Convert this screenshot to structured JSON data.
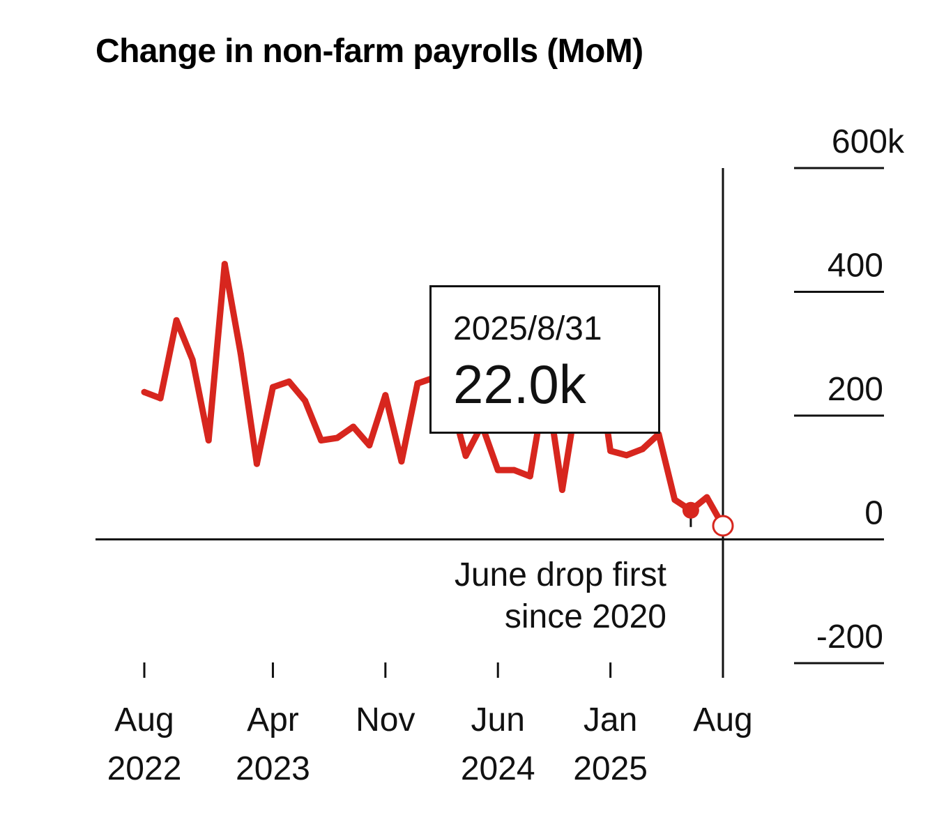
{
  "title": "Change in non-farm payrolls (MoM)",
  "colors": {
    "series": "#d7261e",
    "axis": "#111111",
    "background": "#ffffff"
  },
  "tooltip": {
    "date": "2025/8/31",
    "value": "22.0k"
  },
  "annotation": {
    "line1": "June drop first",
    "line2": "since 2020"
  },
  "chart_data": {
    "type": "line",
    "title": "Change in non-farm payrolls (MoM)",
    "y_unit_label": "600k",
    "ylim": [
      -200,
      600
    ],
    "y_ticks": [
      {
        "value": 600,
        "label": "600k"
      },
      {
        "value": 400,
        "label": "400"
      },
      {
        "value": 200,
        "label": "200"
      },
      {
        "value": 0,
        "label": "0"
      },
      {
        "value": -200,
        "label": "-200"
      }
    ],
    "x_ticks": [
      {
        "date": "2022-08",
        "month": "Aug",
        "year": "2022"
      },
      {
        "date": "2023-04",
        "month": "Apr",
        "year": "2023"
      },
      {
        "date": "2023-11",
        "month": "Nov",
        "year": ""
      },
      {
        "date": "2024-06",
        "month": "Jun",
        "year": "2024"
      },
      {
        "date": "2025-01",
        "month": "Jan",
        "year": "2025"
      },
      {
        "date": "2025-08",
        "month": "Aug",
        "year": ""
      }
    ],
    "grid": false,
    "x": [
      "2022-08",
      "2022-09",
      "2022-10",
      "2022-11",
      "2022-12",
      "2023-01",
      "2023-02",
      "2023-03",
      "2023-04",
      "2023-05",
      "2023-06",
      "2023-07",
      "2023-08",
      "2023-09",
      "2023-10",
      "2023-11",
      "2023-12",
      "2024-01",
      "2024-02",
      "2024-03",
      "2024-04",
      "2024-05",
      "2024-06",
      "2024-07",
      "2024-08",
      "2024-09",
      "2024-10",
      "2024-11",
      "2024-12",
      "2025-01",
      "2025-02",
      "2025-03",
      "2025-04",
      "2025-05",
      "2025-06",
      "2025-07",
      "2025-08"
    ],
    "series": [
      {
        "values": [
          238,
          228,
          354,
          290,
          160,
          445,
          300,
          122,
          246,
          255,
          224,
          160,
          164,
          182,
          152,
          233,
          126,
          252,
          261,
          230,
          135,
          185,
          112,
          112,
          102,
          255,
          80,
          242,
          323,
          143,
          136,
          146,
          170,
          64,
          47,
          68,
          22
        ]
      }
    ],
    "highlight": {
      "date": "2025-08",
      "value": 22
    },
    "low_point": {
      "date": "2025-06",
      "value": 47
    }
  }
}
